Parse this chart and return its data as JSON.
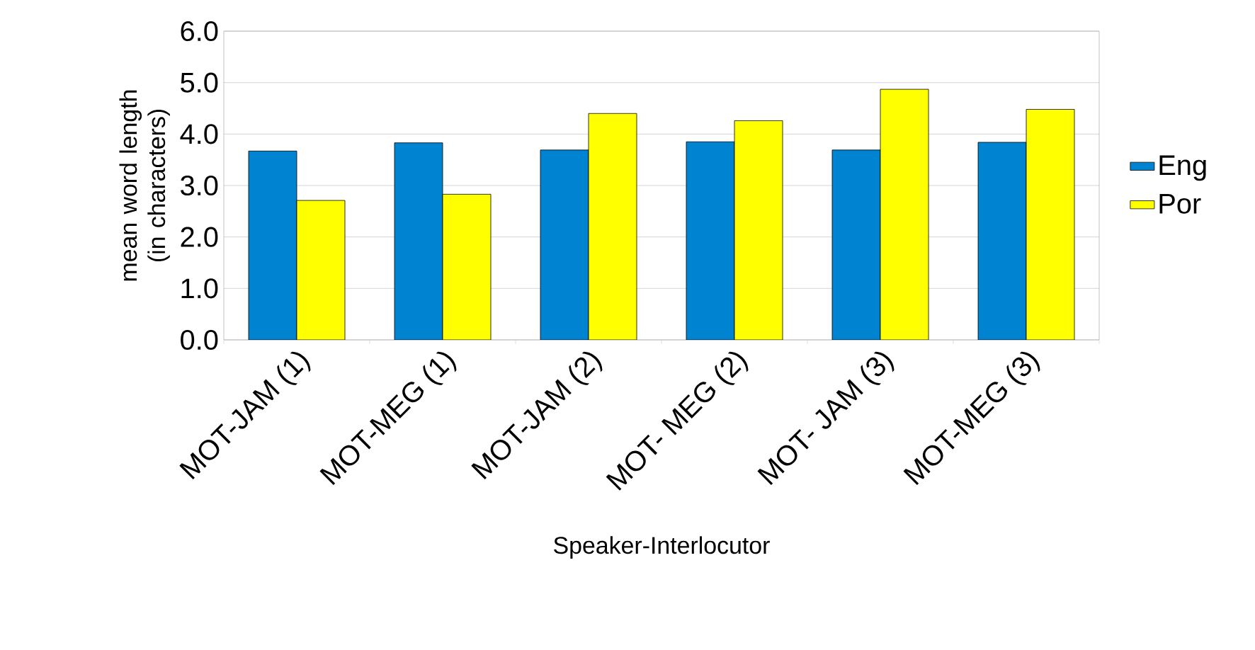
{
  "chart_data": {
    "type": "bar",
    "categories": [
      "MOT-JAM (1)",
      "MOT-MEG (1)",
      "MOT-JAM (2)",
      "MOT- MEG (2)",
      "MOT- JAM (3)",
      "MOT-MEG (3)"
    ],
    "series": [
      {
        "name": "Eng",
        "color": "#0084d1",
        "values": [
          3.67,
          3.83,
          3.69,
          3.85,
          3.69,
          3.84
        ]
      },
      {
        "name": "Por",
        "color": "#ffff00",
        "values": [
          2.71,
          2.83,
          4.4,
          4.26,
          4.87,
          4.48
        ]
      }
    ],
    "xlabel": "Speaker-Interlocutor",
    "ylabel": "mean word length (in characters)",
    "ylim": [
      0,
      6
    ],
    "yticks": [
      {
        "value": 0,
        "label": "0.0"
      },
      {
        "value": 1,
        "label": "1.0"
      },
      {
        "value": 2,
        "label": "2.0"
      },
      {
        "value": 3,
        "label": "3.0"
      },
      {
        "value": 4,
        "label": "4.0"
      },
      {
        "value": 5,
        "label": "5.0"
      },
      {
        "value": 6,
        "label": "6.0"
      }
    ],
    "grid": "y",
    "legend": "right"
  }
}
